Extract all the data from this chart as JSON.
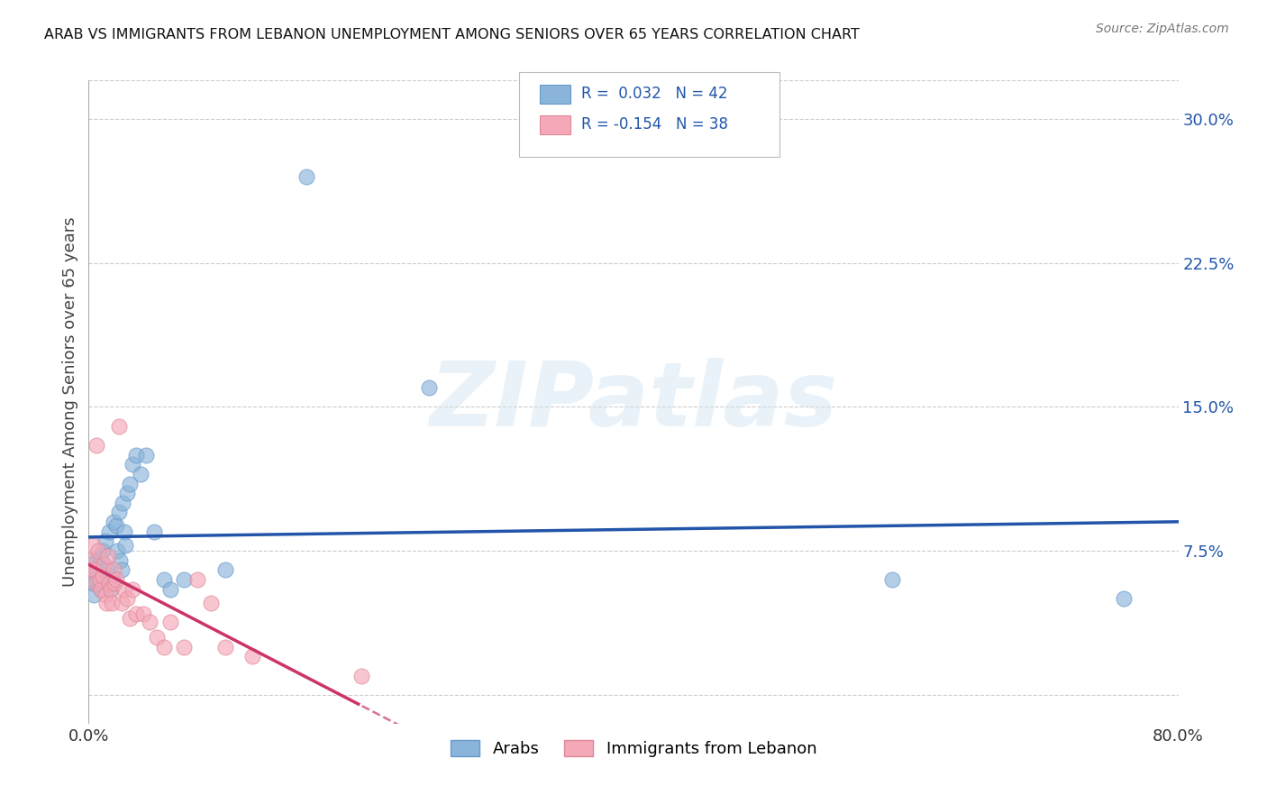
{
  "title": "ARAB VS IMMIGRANTS FROM LEBANON UNEMPLOYMENT AMONG SENIORS OVER 65 YEARS CORRELATION CHART",
  "source": "Source: ZipAtlas.com",
  "ylabel": "Unemployment Among Seniors over 65 years",
  "xlim": [
    0.0,
    0.8
  ],
  "ylim": [
    -0.015,
    0.32
  ],
  "xtick_positions": [
    0.0,
    0.1,
    0.2,
    0.3,
    0.4,
    0.5,
    0.6,
    0.7,
    0.8
  ],
  "xticklabels": [
    "0.0%",
    "",
    "",
    "",
    "",
    "",
    "",
    "",
    "80.0%"
  ],
  "ytick_positions": [
    0.0,
    0.075,
    0.15,
    0.225,
    0.3
  ],
  "ytick_labels": [
    "",
    "7.5%",
    "15.0%",
    "22.5%",
    "30.0%"
  ],
  "arab_color": "#8ab4d9",
  "arab_edge_color": "#6699cc",
  "lebanon_color": "#f4a8b8",
  "lebanon_edge_color": "#e08898",
  "trend_arab_color": "#2255aa",
  "trend_lebanon_color": "#cc3366",
  "R_arab": 0.032,
  "N_arab": 42,
  "R_lebanon": -0.154,
  "N_lebanon": 38,
  "watermark": "ZIPatlas",
  "background_color": "#ffffff",
  "grid_color": "#cccccc",
  "legend_color": "#2255aa",
  "legend_label_arab": "Arabs",
  "legend_label_lebanon": "Immigrants from Lebanon",
  "arab_x": [
    0.001,
    0.002,
    0.003,
    0.004,
    0.005,
    0.006,
    0.007,
    0.008,
    0.009,
    0.01,
    0.011,
    0.012,
    0.013,
    0.014,
    0.015,
    0.016,
    0.017,
    0.018,
    0.019,
    0.02,
    0.021,
    0.022,
    0.023,
    0.024,
    0.025,
    0.026,
    0.027,
    0.028,
    0.03,
    0.032,
    0.035,
    0.038,
    0.042,
    0.048,
    0.055,
    0.06,
    0.07,
    0.1,
    0.16,
    0.25,
    0.59,
    0.76
  ],
  "arab_y": [
    0.06,
    0.068,
    0.058,
    0.052,
    0.07,
    0.065,
    0.058,
    0.072,
    0.055,
    0.075,
    0.068,
    0.08,
    0.065,
    0.06,
    0.085,
    0.055,
    0.062,
    0.09,
    0.058,
    0.088,
    0.075,
    0.095,
    0.07,
    0.065,
    0.1,
    0.085,
    0.078,
    0.105,
    0.11,
    0.12,
    0.125,
    0.115,
    0.125,
    0.085,
    0.06,
    0.055,
    0.06,
    0.065,
    0.27,
    0.16,
    0.06,
    0.05
  ],
  "lebanon_x": [
    0.001,
    0.002,
    0.003,
    0.004,
    0.005,
    0.006,
    0.007,
    0.008,
    0.009,
    0.01,
    0.011,
    0.012,
    0.013,
    0.014,
    0.015,
    0.016,
    0.017,
    0.018,
    0.019,
    0.02,
    0.022,
    0.024,
    0.026,
    0.028,
    0.03,
    0.032,
    0.035,
    0.04,
    0.045,
    0.05,
    0.055,
    0.06,
    0.07,
    0.08,
    0.09,
    0.1,
    0.12,
    0.2
  ],
  "lebanon_y": [
    0.065,
    0.07,
    0.078,
    0.065,
    0.058,
    0.13,
    0.075,
    0.06,
    0.055,
    0.062,
    0.068,
    0.052,
    0.048,
    0.072,
    0.058,
    0.055,
    0.048,
    0.065,
    0.058,
    0.06,
    0.14,
    0.048,
    0.055,
    0.05,
    0.04,
    0.055,
    0.042,
    0.042,
    0.038,
    0.03,
    0.025,
    0.038,
    0.025,
    0.06,
    0.048,
    0.025,
    0.02,
    0.01
  ]
}
